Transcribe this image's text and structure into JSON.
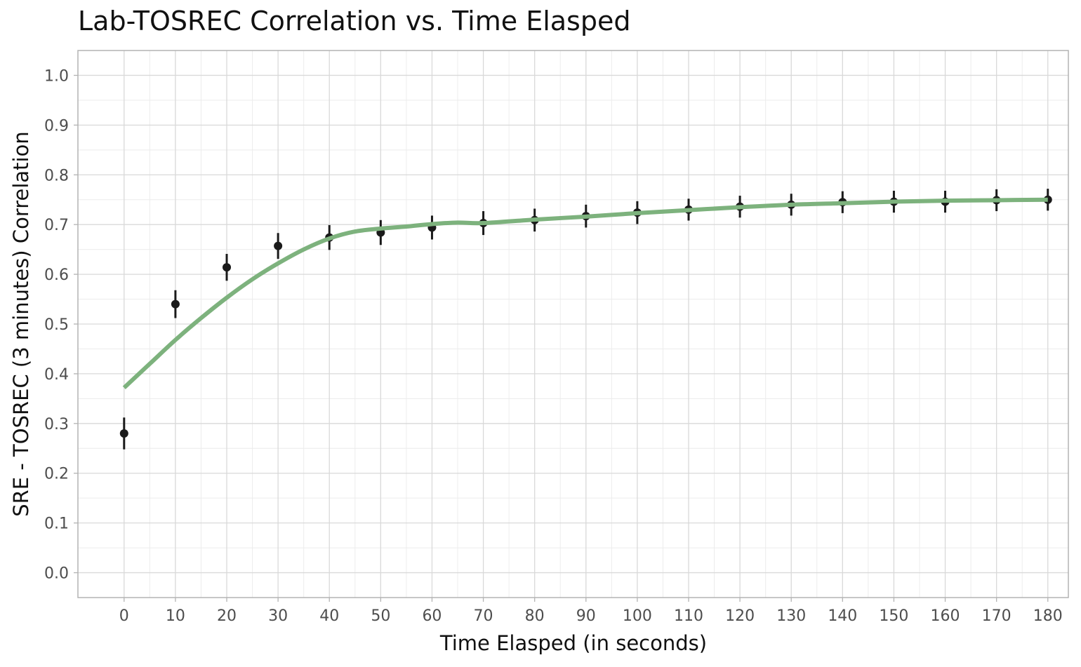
{
  "chart_data": {
    "type": "scatter",
    "title": "Lab-TOSREC Correlation vs. Time Elasped",
    "xlabel": "Time Elasped (in seconds)",
    "ylabel": "SRE - TOSREC (3 minutes) Correlation",
    "xlim": [
      -9,
      184
    ],
    "ylim": [
      -0.05,
      1.05
    ],
    "x_ticks": [
      0,
      10,
      20,
      30,
      40,
      50,
      60,
      70,
      80,
      90,
      100,
      110,
      120,
      130,
      140,
      150,
      160,
      170,
      180
    ],
    "y_ticks": [
      0.0,
      0.1,
      0.2,
      0.3,
      0.4,
      0.5,
      0.6,
      0.7,
      0.8,
      0.9,
      1.0
    ],
    "grid": true,
    "legend": "none",
    "points": {
      "x": [
        0,
        10,
        20,
        30,
        40,
        50,
        60,
        70,
        80,
        90,
        100,
        110,
        120,
        130,
        140,
        150,
        160,
        170,
        180
      ],
      "y": [
        0.28,
        0.54,
        0.614,
        0.657,
        0.674,
        0.684,
        0.694,
        0.703,
        0.709,
        0.717,
        0.724,
        0.73,
        0.736,
        0.74,
        0.745,
        0.746,
        0.746,
        0.749,
        0.75
      ],
      "error": [
        0.032,
        0.028,
        0.027,
        0.026,
        0.025,
        0.025,
        0.024,
        0.024,
        0.023,
        0.023,
        0.023,
        0.022,
        0.022,
        0.022,
        0.022,
        0.022,
        0.022,
        0.022,
        0.022
      ],
      "color": "#1a1a1a"
    },
    "smooth_line": {
      "x": [
        0,
        5,
        10,
        15,
        20,
        25,
        30,
        35,
        40,
        45,
        50,
        55,
        60,
        65,
        70,
        80,
        90,
        100,
        110,
        120,
        130,
        140,
        150,
        160,
        170,
        180
      ],
      "y": [
        0.372,
        0.42,
        0.468,
        0.512,
        0.553,
        0.59,
        0.622,
        0.65,
        0.672,
        0.686,
        0.692,
        0.696,
        0.701,
        0.704,
        0.703,
        0.71,
        0.716,
        0.723,
        0.729,
        0.735,
        0.74,
        0.743,
        0.746,
        0.748,
        0.749,
        0.75
      ],
      "color": "#7db27d"
    }
  }
}
